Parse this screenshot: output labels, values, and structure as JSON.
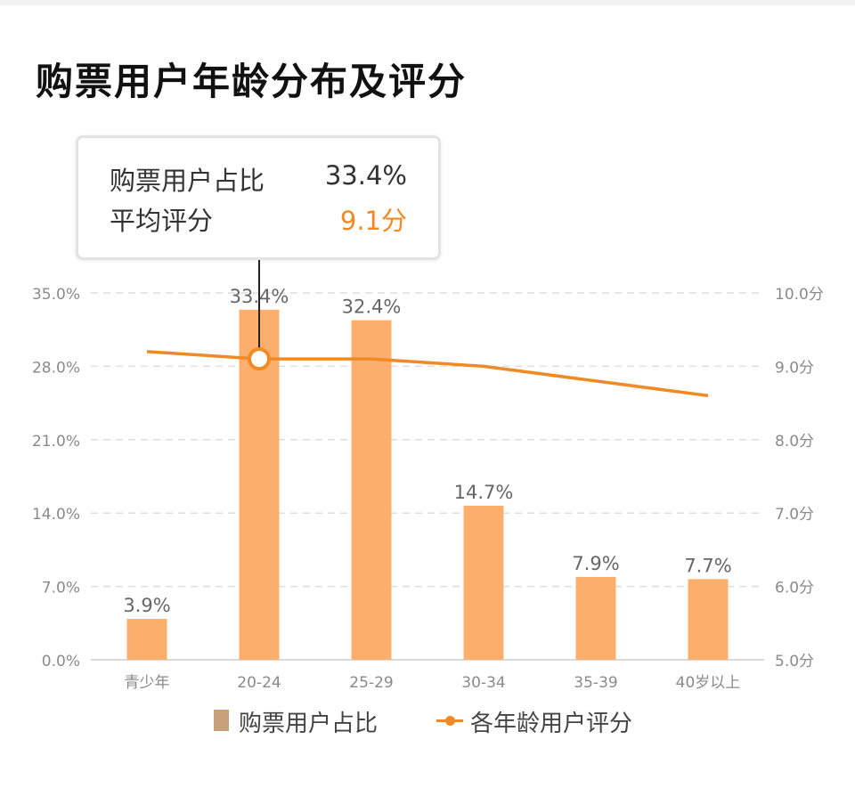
{
  "page": {
    "title": "购票用户年龄分布及评分"
  },
  "tooltip": {
    "share_label": "购票用户占比",
    "share_value": "33.4%",
    "score_label": "平均评分",
    "score_value": "9.1分"
  },
  "legend": {
    "bar_label": "购票用户占比",
    "line_label": "各年龄用户评分"
  },
  "colors": {
    "bar": "#fcaf6c",
    "line": "#f08a24",
    "legend_bar": "#c8a07a",
    "axis_text": "#8a8a8a",
    "label_text": "#666666",
    "grid": "#dedede"
  },
  "chart_data": {
    "type": "bar",
    "categories": [
      "青少年",
      "20-24",
      "25-29",
      "30-34",
      "35-39",
      "40岁以上"
    ],
    "series": [
      {
        "name": "购票用户占比",
        "type": "bar",
        "axis": "left",
        "values": [
          3.9,
          33.4,
          32.4,
          14.7,
          7.9,
          7.7
        ],
        "labels": [
          "3.9%",
          "33.4%",
          "32.4%",
          "14.7%",
          "7.9%",
          "7.7%"
        ]
      },
      {
        "name": "各年龄用户评分",
        "type": "line",
        "axis": "right",
        "values": [
          9.2,
          9.1,
          9.1,
          9.0,
          8.8,
          8.6
        ]
      }
    ],
    "y_left": {
      "lim": [
        0,
        35
      ],
      "ticks": [
        0,
        7,
        14,
        21,
        28,
        35
      ],
      "tick_labels": [
        "0.0%",
        "7.0%",
        "14.0%",
        "21.0%",
        "28.0%",
        "35.0%"
      ]
    },
    "y_right": {
      "lim": [
        5,
        10
      ],
      "ticks": [
        5,
        6,
        7,
        8,
        9,
        10
      ],
      "tick_labels": [
        "5.0分",
        "6.0分",
        "7.0分",
        "8.0分",
        "9.0分",
        "10.0分"
      ]
    },
    "grid": "dashed horizontal",
    "legend_position": "bottom",
    "highlighted_index": 1
  }
}
